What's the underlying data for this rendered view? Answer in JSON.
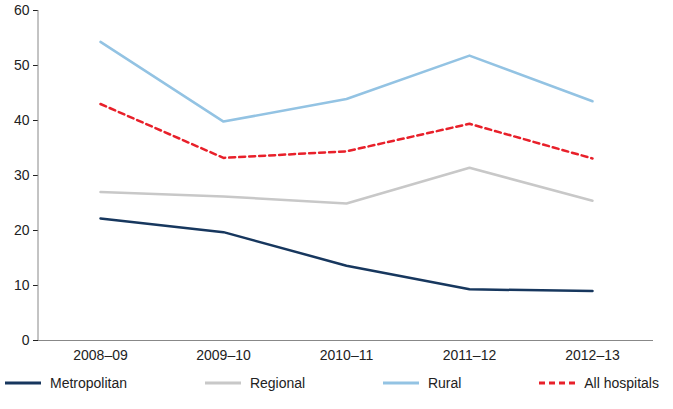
{
  "chart_data": {
    "type": "line",
    "categories": [
      "2008–09",
      "2009–10",
      "2010–11",
      "2011–12",
      "2012–13"
    ],
    "series": [
      {
        "name": "Metropolitan",
        "color": "#17375e",
        "line_style": "solid",
        "values": [
          22.2,
          19.7,
          13.6,
          9.3,
          9.0
        ]
      },
      {
        "name": "Regional",
        "color": "#c8c8c8",
        "line_style": "solid",
        "values": [
          27.0,
          26.2,
          24.9,
          31.4,
          25.4
        ]
      },
      {
        "name": "Rural",
        "color": "#93c3e3",
        "line_style": "solid",
        "values": [
          54.3,
          39.8,
          43.9,
          51.8,
          43.5
        ]
      },
      {
        "name": "All hospitals",
        "color": "#e8202a",
        "line_style": "dashed",
        "values": [
          43.0,
          33.2,
          34.4,
          39.4,
          33.1
        ]
      }
    ],
    "ylim": [
      0,
      60
    ],
    "yticks": [
      0,
      10,
      20,
      30,
      40,
      50,
      60
    ],
    "grid": false,
    "legend": "bottom"
  }
}
